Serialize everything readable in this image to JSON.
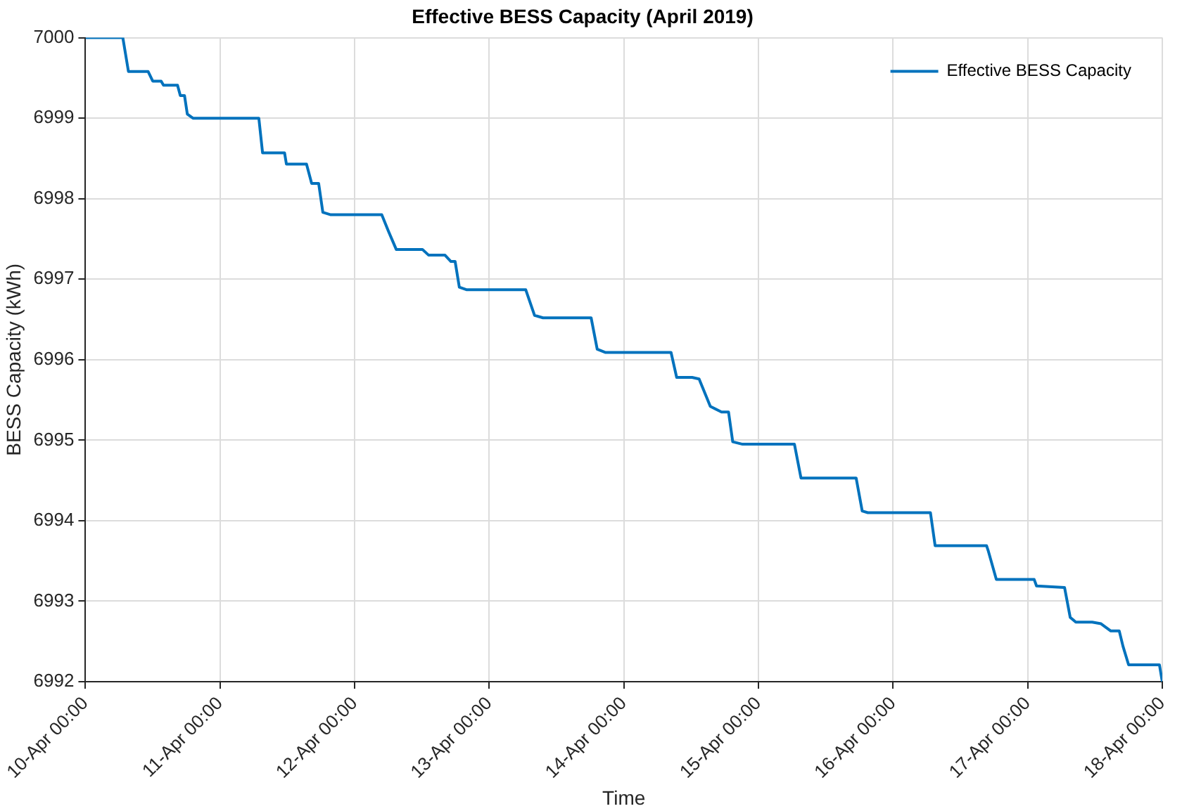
{
  "chart_data": {
    "type": "line",
    "title": "Effective BESS Capacity (April 2019)",
    "xlabel": "Time",
    "ylabel": "BESS Capacity (kWh)",
    "x": [
      "2019-04-10T00:00",
      "2019-04-10T06:40",
      "2019-04-10T07:40",
      "2019-04-10T11:10",
      "2019-04-10T12:00",
      "2019-04-10T13:30",
      "2019-04-10T13:55",
      "2019-04-10T16:25",
      "2019-04-10T16:55",
      "2019-04-10T17:40",
      "2019-04-10T18:10",
      "2019-04-10T19:10",
      "2019-04-11T06:55",
      "2019-04-11T07:35",
      "2019-04-11T11:30",
      "2019-04-11T11:50",
      "2019-04-11T15:25",
      "2019-04-11T16:20",
      "2019-04-11T17:35",
      "2019-04-11T18:20",
      "2019-04-11T19:45",
      "2019-04-12T04:50",
      "2019-04-12T06:00",
      "2019-04-12T07:25",
      "2019-04-12T12:05",
      "2019-04-12T13:10",
      "2019-04-12T16:05",
      "2019-04-12T17:10",
      "2019-04-12T17:55",
      "2019-04-12T18:40",
      "2019-04-12T19:55",
      "2019-04-13T06:30",
      "2019-04-13T08:05",
      "2019-04-13T09:35",
      "2019-04-13T18:10",
      "2019-04-13T19:15",
      "2019-04-13T20:45",
      "2019-04-14T08:25",
      "2019-04-14T09:25",
      "2019-04-14T12:10",
      "2019-04-14T13:25",
      "2019-04-14T15:25",
      "2019-04-14T17:25",
      "2019-04-14T18:40",
      "2019-04-14T19:25",
      "2019-04-14T21:10",
      "2019-04-15T06:25",
      "2019-04-15T07:35",
      "2019-04-15T17:25",
      "2019-04-15T18:30",
      "2019-04-15T19:30",
      "2019-04-16T06:40",
      "2019-04-16T07:30",
      "2019-04-16T16:40",
      "2019-04-16T17:00",
      "2019-04-16T18:25",
      "2019-04-17T01:10",
      "2019-04-17T01:35",
      "2019-04-17T06:35",
      "2019-04-17T07:35",
      "2019-04-17T08:35",
      "2019-04-17T11:30",
      "2019-04-17T13:05",
      "2019-04-17T14:50",
      "2019-04-17T16:20",
      "2019-04-17T17:00",
      "2019-04-17T18:00",
      "2019-04-17T23:30",
      "2019-04-18T00:00"
    ],
    "series": [
      {
        "name": "Effective BESS Capacity",
        "color": "#0072bd",
        "values": [
          7000,
          7000,
          6999.58,
          6999.58,
          6999.46,
          6999.46,
          6999.41,
          6999.41,
          6999.28,
          6999.28,
          6999.05,
          6999.0,
          6999.0,
          6998.57,
          6998.57,
          6998.43,
          6998.43,
          6998.19,
          6998.19,
          6997.83,
          6997.8,
          6997.8,
          6997.6,
          6997.37,
          6997.37,
          6997.3,
          6997.3,
          6997.22,
          6997.22,
          6996.9,
          6996.87,
          6996.87,
          6996.55,
          6996.52,
          6996.52,
          6996.13,
          6996.09,
          6996.09,
          6995.78,
          6995.78,
          6995.76,
          6995.42,
          6995.35,
          6995.35,
          6994.98,
          6994.95,
          6994.95,
          6994.53,
          6994.53,
          6994.12,
          6994.1,
          6994.1,
          6993.69,
          6993.69,
          6993.62,
          6993.27,
          6993.27,
          6993.19,
          6993.17,
          6992.8,
          6992.74,
          6992.74,
          6992.72,
          6992.63,
          6992.63,
          6992.44,
          6992.21,
          6992.21,
          6992.0
        ]
      }
    ],
    "xlim": [
      "2019-04-10T00:00",
      "2019-04-18T00:00"
    ],
    "xticks": [
      {
        "value": "2019-04-10T00:00",
        "label": "10-Apr 00:00"
      },
      {
        "value": "2019-04-11T00:00",
        "label": "11-Apr 00:00"
      },
      {
        "value": "2019-04-12T00:00",
        "label": "12-Apr 00:00"
      },
      {
        "value": "2019-04-13T00:00",
        "label": "13-Apr 00:00"
      },
      {
        "value": "2019-04-14T00:00",
        "label": "14-Apr 00:00"
      },
      {
        "value": "2019-04-15T00:00",
        "label": "15-Apr 00:00"
      },
      {
        "value": "2019-04-16T00:00",
        "label": "16-Apr 00:00"
      },
      {
        "value": "2019-04-17T00:00",
        "label": "17-Apr 00:00"
      },
      {
        "value": "2019-04-18T00:00",
        "label": "18-Apr 00:00"
      }
    ],
    "ylim": [
      6992,
      7000
    ],
    "yticks": [
      6992,
      6993,
      6994,
      6995,
      6996,
      6997,
      6998,
      6999,
      7000
    ],
    "grid": true,
    "legend": "top right",
    "marker": "none",
    "line_style": "solid"
  }
}
